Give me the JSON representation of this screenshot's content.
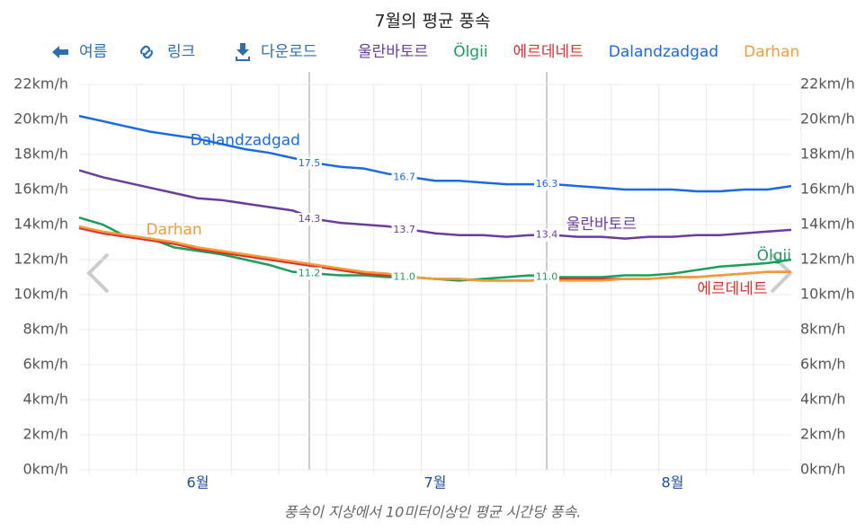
{
  "toolbar": [
    "여름",
    "링크",
    "다운로드"
  ],
  "chart_data": {
    "type": "line",
    "title": "7월의 평균 풍속",
    "note": "풍속이 지상에서 10미터이상인 평균 시간당 풍속.",
    "categories": [
      null,
      null,
      null,
      null,
      null,
      "6월",
      null,
      null,
      null,
      null,
      null,
      null,
      null,
      null,
      null,
      "7월",
      null,
      null,
      null,
      null,
      null,
      null,
      null,
      null,
      null,
      "8월",
      null,
      null,
      null,
      null,
      null
    ],
    "ylim": [
      0,
      22
    ],
    "yticks": [
      {
        "value": 0,
        "label": "0km/h"
      },
      {
        "value": 2,
        "label": "2km/h"
      },
      {
        "value": 4,
        "label": "4km/h"
      },
      {
        "value": 6,
        "label": "6km/h"
      },
      {
        "value": 8,
        "label": "8km/h"
      },
      {
        "value": 10,
        "label": "10km/h"
      },
      {
        "value": 12,
        "label": "12km/h"
      },
      {
        "value": 14,
        "label": "14km/h"
      },
      {
        "value": 16,
        "label": "16km/h"
      },
      {
        "value": 18,
        "label": "18km/h"
      },
      {
        "value": 20,
        "label": "20km/h"
      },
      {
        "value": 22,
        "label": "22km/h"
      }
    ],
    "grid": true,
    "series": [
      {
        "name": "울란바토르",
        "color": "#6a3d9a",
        "values": [
          17.1,
          16.7,
          16.4,
          16.1,
          15.8,
          15.5,
          15.4,
          15.2,
          15.0,
          14.8,
          14.3,
          14.1,
          14.0,
          13.9,
          13.7,
          13.5,
          13.4,
          13.4,
          13.3,
          13.4,
          13.4,
          13.3,
          13.3,
          13.2,
          13.3,
          13.3,
          13.4,
          13.4,
          13.5,
          13.6,
          13.7
        ],
        "value_labels": [
          null,
          null,
          null,
          null,
          null,
          null,
          null,
          null,
          null,
          null,
          "14.3",
          null,
          null,
          null,
          "13.7",
          null,
          null,
          null,
          null,
          null,
          "13.4",
          null,
          null,
          null,
          null,
          null,
          null,
          null,
          null,
          null,
          null
        ]
      },
      {
        "name": "Ölgii",
        "color": "#1a9e5a",
        "values": [
          14.4,
          14.0,
          13.3,
          13.2,
          12.7,
          12.5,
          12.3,
          12.0,
          11.7,
          11.3,
          11.2,
          11.1,
          11.1,
          11.0,
          11.0,
          10.9,
          10.8,
          10.9,
          11.0,
          11.1,
          11.0,
          11.0,
          11.0,
          11.1,
          11.1,
          11.2,
          11.4,
          11.6,
          11.7,
          11.8,
          12.0
        ],
        "value_labels": [
          null,
          null,
          null,
          null,
          null,
          null,
          null,
          null,
          null,
          null,
          "11.2",
          null,
          null,
          null,
          "11.0",
          null,
          null,
          null,
          null,
          null,
          "11.0",
          null,
          null,
          null,
          null,
          null,
          null,
          null,
          null,
          null,
          null
        ]
      },
      {
        "name": "에르데네트",
        "color": "#e0302e",
        "values": [
          13.8,
          13.5,
          13.3,
          13.1,
          12.9,
          12.6,
          12.4,
          12.2,
          12.0,
          11.8,
          11.6,
          11.4,
          11.2,
          11.1,
          11.0,
          10.9,
          10.9,
          10.8,
          10.8,
          10.8,
          10.9,
          10.9,
          10.9,
          10.9,
          10.9,
          11.0,
          11.0,
          11.1,
          11.2,
          11.3,
          11.3
        ]
      },
      {
        "name": "Dalandzadgad",
        "color": "#1a6be0",
        "values": [
          20.2,
          19.9,
          19.6,
          19.3,
          19.1,
          18.9,
          18.6,
          18.3,
          18.1,
          17.8,
          17.5,
          17.3,
          17.2,
          16.9,
          16.7,
          16.5,
          16.5,
          16.4,
          16.3,
          16.3,
          16.3,
          16.2,
          16.1,
          16.0,
          16.0,
          16.0,
          15.9,
          15.9,
          16.0,
          16.0,
          16.2
        ],
        "value_labels": [
          null,
          null,
          null,
          null,
          null,
          null,
          null,
          null,
          null,
          null,
          "17.5",
          null,
          null,
          null,
          "16.7",
          null,
          null,
          null,
          null,
          null,
          "16.3",
          null,
          null,
          null,
          null,
          null,
          null,
          null,
          null,
          null,
          null
        ]
      },
      {
        "name": "Darhan",
        "color": "#f39c3a",
        "values": [
          13.9,
          13.6,
          13.4,
          13.2,
          13.0,
          12.7,
          12.5,
          12.3,
          12.1,
          11.9,
          11.7,
          11.5,
          11.3,
          11.2,
          11.0,
          10.9,
          10.9,
          10.8,
          10.8,
          10.8,
          10.8,
          10.8,
          10.8,
          10.9,
          10.9,
          11.0,
          11.0,
          11.1,
          11.2,
          11.3,
          11.3
        ]
      }
    ]
  }
}
